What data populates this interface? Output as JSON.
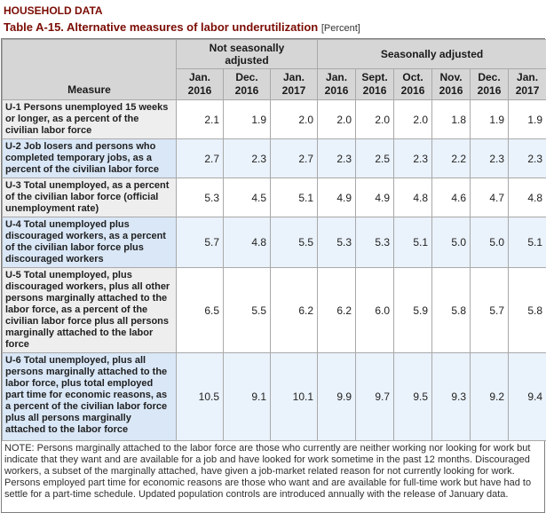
{
  "page": {
    "kicker": "HOUSEHOLD DATA",
    "title": "Table A-15. Alternative measures of labor underutilization",
    "unit_label": "[Percent]"
  },
  "table": {
    "measure_header": "Measure",
    "groups": [
      {
        "label": "Not seasonally adjusted",
        "colspan": 3
      },
      {
        "label": "Seasonally adjusted",
        "colspan": 6
      }
    ],
    "columns": [
      {
        "month": "Jan.",
        "year": "2016"
      },
      {
        "month": "Dec.",
        "year": "2016"
      },
      {
        "month": "Jan.",
        "year": "2017"
      },
      {
        "month": "Jan.",
        "year": "2016"
      },
      {
        "month": "Sept.",
        "year": "2016"
      },
      {
        "month": "Oct.",
        "year": "2016"
      },
      {
        "month": "Nov.",
        "year": "2016"
      },
      {
        "month": "Dec.",
        "year": "2016"
      },
      {
        "month": "Jan.",
        "year": "2017"
      }
    ],
    "rows": [
      {
        "id": "u1",
        "measure": "U-1 Persons unemployed 15 weeks or longer, as a percent of the civilian labor force",
        "values": [
          "2.1",
          "1.9",
          "2.0",
          "2.0",
          "2.0",
          "2.0",
          "1.8",
          "1.9",
          "1.9"
        ]
      },
      {
        "id": "u2",
        "measure": "U-2 Job losers and persons who completed temporary jobs, as a percent of the civilian labor force",
        "values": [
          "2.7",
          "2.3",
          "2.7",
          "2.3",
          "2.5",
          "2.3",
          "2.2",
          "2.3",
          "2.3"
        ]
      },
      {
        "id": "u3",
        "measure": "U-3 Total unemployed, as a percent of the civilian labor force (official unemployment rate)",
        "values": [
          "5.3",
          "4.5",
          "5.1",
          "4.9",
          "4.9",
          "4.8",
          "4.6",
          "4.7",
          "4.8"
        ]
      },
      {
        "id": "u4",
        "measure": "U-4 Total unemployed plus discouraged workers, as a percent of the civilian labor force plus discouraged workers",
        "values": [
          "5.7",
          "4.8",
          "5.5",
          "5.3",
          "5.3",
          "5.1",
          "5.0",
          "5.0",
          "5.1"
        ]
      },
      {
        "id": "u5",
        "measure": "U-5 Total unemployed, plus discouraged workers, plus all other persons marginally attached to the labor force, as a percent of the civilian labor force plus all persons marginally attached to the labor force",
        "values": [
          "6.5",
          "5.5",
          "6.2",
          "6.2",
          "6.0",
          "5.9",
          "5.8",
          "5.7",
          "5.8"
        ]
      },
      {
        "id": "u6",
        "measure": "U-6 Total unemployed, plus all persons marginally attached to the labor force, plus total employed part time for economic reasons, as a percent of the civilian labor force plus all persons marginally attached to the labor force",
        "values": [
          "10.5",
          "9.1",
          "10.1",
          "9.9",
          "9.7",
          "9.5",
          "9.3",
          "9.2",
          "9.4"
        ]
      }
    ]
  },
  "note": "NOTE: Persons marginally attached to the labor force are those who currently are neither working nor looking for work but indicate that they want and are available for a job and have looked for work sometime in the past 12 months. Discouraged workers, a subset of the marginally attached, have given a job-market related reason for not currently looking for work. Persons employed part time for economic reasons are those who want and are available for full-time work but have had to settle for a part-time schedule. Updated population controls are introduced annually with the release of January data.",
  "colors": {
    "title_maroon": "#7b0c04",
    "header_bg": "#d6d6d6",
    "row_blue_measure": "#d9e7f7",
    "row_blue_value": "#eaf2fb",
    "row_gray_measure": "#eeeeee",
    "cell_border": "#a9a9a9",
    "outer_border": "#7f7f7f"
  }
}
